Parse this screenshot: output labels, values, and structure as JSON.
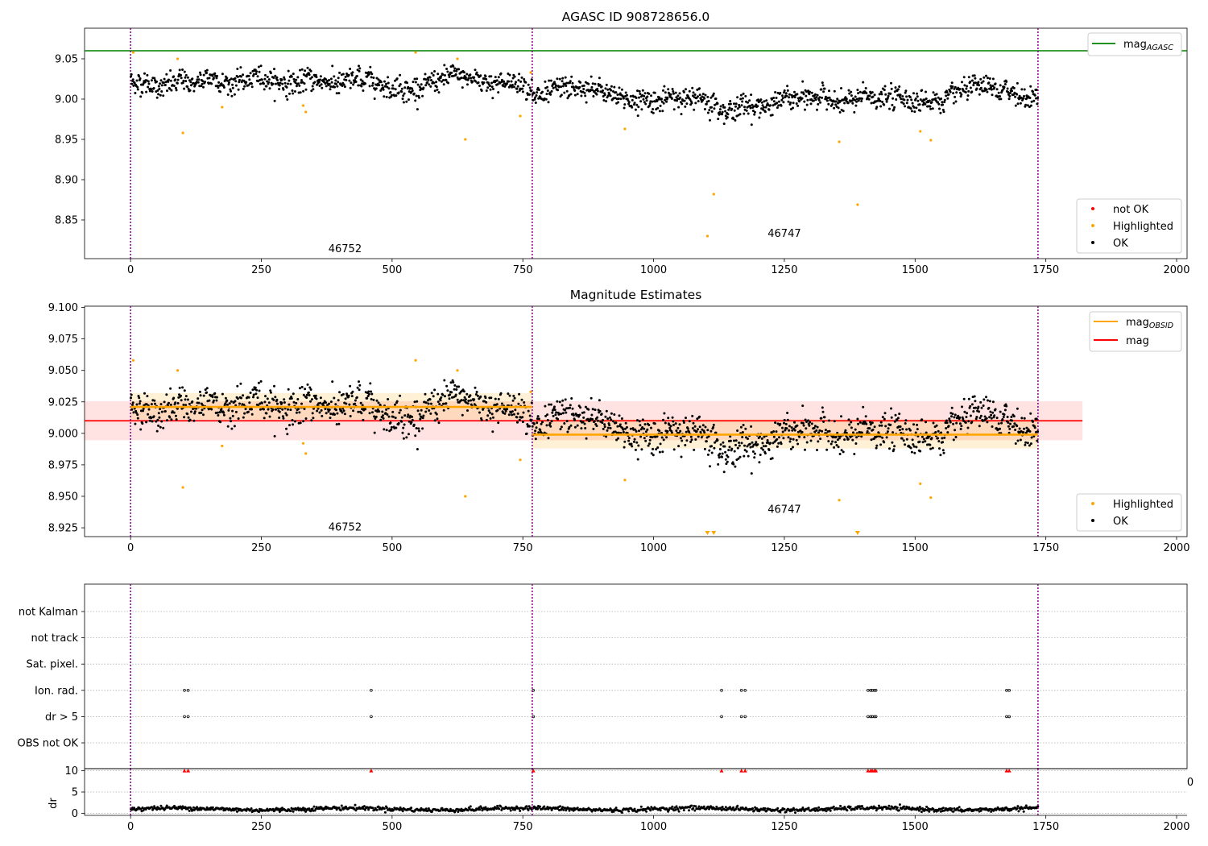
{
  "chart_data": [
    {
      "type": "scatter",
      "title": "AGASC ID 908728656.0",
      "xlim": [
        -88,
        2020
      ],
      "ylim": [
        8.802,
        9.088
      ],
      "x_ticks": [
        "0",
        "250",
        "500",
        "750",
        "1000",
        "1250",
        "1500",
        "1750",
        "2000"
      ],
      "y_ticks": [
        "8.85",
        "8.90",
        "8.95",
        "9.00",
        "9.05"
      ],
      "obs_boundaries": [
        0,
        768,
        1735
      ],
      "obsid_labels": [
        {
          "text": "46752",
          "x": 410,
          "y": 8.815
        },
        {
          "text": "46747",
          "x": 1250,
          "y": 8.834
        }
      ],
      "mag_agasc": 9.06,
      "legend_lines": [
        {
          "name": "mag_AGASC",
          "base": "mag",
          "sub": "AGASC",
          "color": "#008000"
        }
      ],
      "legend_points": [
        {
          "name": "not OK",
          "color": "#ff0000"
        },
        {
          "name": "Highlighted",
          "color": "#ffa500"
        },
        {
          "name": "OK",
          "color": "#000000"
        }
      ],
      "segments": [
        {
          "x_start": 0,
          "x_end": 768,
          "mean": 9.022,
          "noise": 0.009
        },
        {
          "x_start": 768,
          "x_end": 1735,
          "mean": 8.999,
          "noise": 0.009
        }
      ],
      "highlighted": [
        [
          5,
          9.058
        ],
        [
          90,
          9.05
        ],
        [
          100,
          8.958
        ],
        [
          175,
          8.99
        ],
        [
          330,
          8.992
        ],
        [
          335,
          8.984
        ],
        [
          545,
          9.058
        ],
        [
          625,
          9.05
        ],
        [
          640,
          8.95
        ],
        [
          745,
          8.979
        ],
        [
          765,
          9.033
        ],
        [
          945,
          8.963
        ],
        [
          1103,
          8.83
        ],
        [
          1115,
          8.882
        ],
        [
          1355,
          8.947
        ],
        [
          1390,
          8.869
        ],
        [
          1510,
          8.96
        ],
        [
          1530,
          8.949
        ]
      ]
    },
    {
      "type": "scatter",
      "title": "Magnitude Estimates",
      "xlim": [
        -88,
        2020
      ],
      "ylim": [
        8.918,
        9.101
      ],
      "x_ticks": [
        "0",
        "250",
        "500",
        "750",
        "1000",
        "1250",
        "1500",
        "1750",
        "2000"
      ],
      "y_ticks": [
        "8.925",
        "8.950",
        "8.975",
        "9.000",
        "9.025",
        "9.050",
        "9.075",
        "9.100"
      ],
      "obs_boundaries": [
        0,
        768,
        1735
      ],
      "obsid_labels": [
        {
          "text": "46752",
          "x": 410,
          "y": 8.926
        },
        {
          "text": "46747",
          "x": 1250,
          "y": 8.94
        }
      ],
      "mag": {
        "value": 9.01,
        "band": [
          8.9945,
          9.0255
        ],
        "x_range": [
          -88,
          1820
        ]
      },
      "mag_obsid": [
        {
          "x_start": 0,
          "x_end": 768,
          "value": 9.021,
          "band": [
            9.011,
            9.032
          ]
        },
        {
          "x_start": 768,
          "x_end": 1735,
          "value": 8.999,
          "band": [
            8.988,
            9.011
          ]
        }
      ],
      "legend_lines": [
        {
          "name": "mag_OBSID",
          "base": "mag",
          "sub": "OBSID",
          "color": "#ffa500"
        },
        {
          "name": "mag",
          "base": "mag",
          "sub": "",
          "color": "#ff0000"
        }
      ],
      "legend_points": [
        {
          "name": "Highlighted",
          "color": "#ffa500"
        },
        {
          "name": "OK",
          "color": "#000000"
        }
      ],
      "highlighted": [
        [
          5,
          9.058
        ],
        [
          90,
          9.05
        ],
        [
          100,
          8.957
        ],
        [
          175,
          8.99
        ],
        [
          330,
          8.992
        ],
        [
          335,
          8.984
        ],
        [
          545,
          9.058
        ],
        [
          625,
          9.05
        ],
        [
          640,
          8.95
        ],
        [
          745,
          8.979
        ],
        [
          765,
          9.033
        ],
        [
          945,
          8.963
        ],
        [
          1355,
          8.947
        ],
        [
          1510,
          8.96
        ],
        [
          1530,
          8.949
        ]
      ],
      "below_range_markers": [
        1103,
        1115,
        1390
      ]
    },
    {
      "type": "scatter",
      "title": "",
      "categories": [
        "not Kalman",
        "not track",
        "Sat. pixel.",
        "Ion. rad.",
        "dr > 5",
        "OBS not OK"
      ],
      "xlim": [
        -88,
        2020
      ],
      "obs_boundaries": [
        0,
        768,
        1735
      ],
      "flags": {
        "Ion. rad.": [
          103,
          110,
          460,
          770,
          1130,
          1168,
          1175,
          1410,
          1415,
          1418,
          1422,
          1425,
          1675,
          1680
        ],
        "dr > 5": [
          103,
          110,
          460,
          770,
          1130,
          1168,
          1175,
          1410,
          1415,
          1418,
          1422,
          1425,
          1675,
          1680
        ]
      }
    },
    {
      "type": "scatter",
      "ylabel": "dr",
      "xlim": [
        -88,
        2020
      ],
      "ylim": [
        -0.5,
        10.5
      ],
      "x_ticks": [
        "0",
        "250",
        "500",
        "750",
        "1000",
        "1250",
        "1500",
        "1750",
        "2000"
      ],
      "y_ticks": [
        "0",
        "5",
        "10"
      ],
      "obs_boundaries": [
        0,
        768,
        1735
      ],
      "dr_baseline": {
        "mean": 1.0,
        "amplitude": 0.5
      },
      "clipped_points": [
        103,
        110,
        460,
        770,
        1130,
        1168,
        1175,
        1410,
        1415,
        1418,
        1422,
        1425,
        1675,
        1680
      ],
      "edge_label": "0"
    }
  ],
  "colors": {
    "ok": "#000000",
    "highlighted": "#ffa500",
    "not_ok": "#ff0000",
    "mag_agasc": "#008000",
    "mag": "#ff0000",
    "mag_obsid": "#ffa500",
    "boundary": "#800080"
  }
}
